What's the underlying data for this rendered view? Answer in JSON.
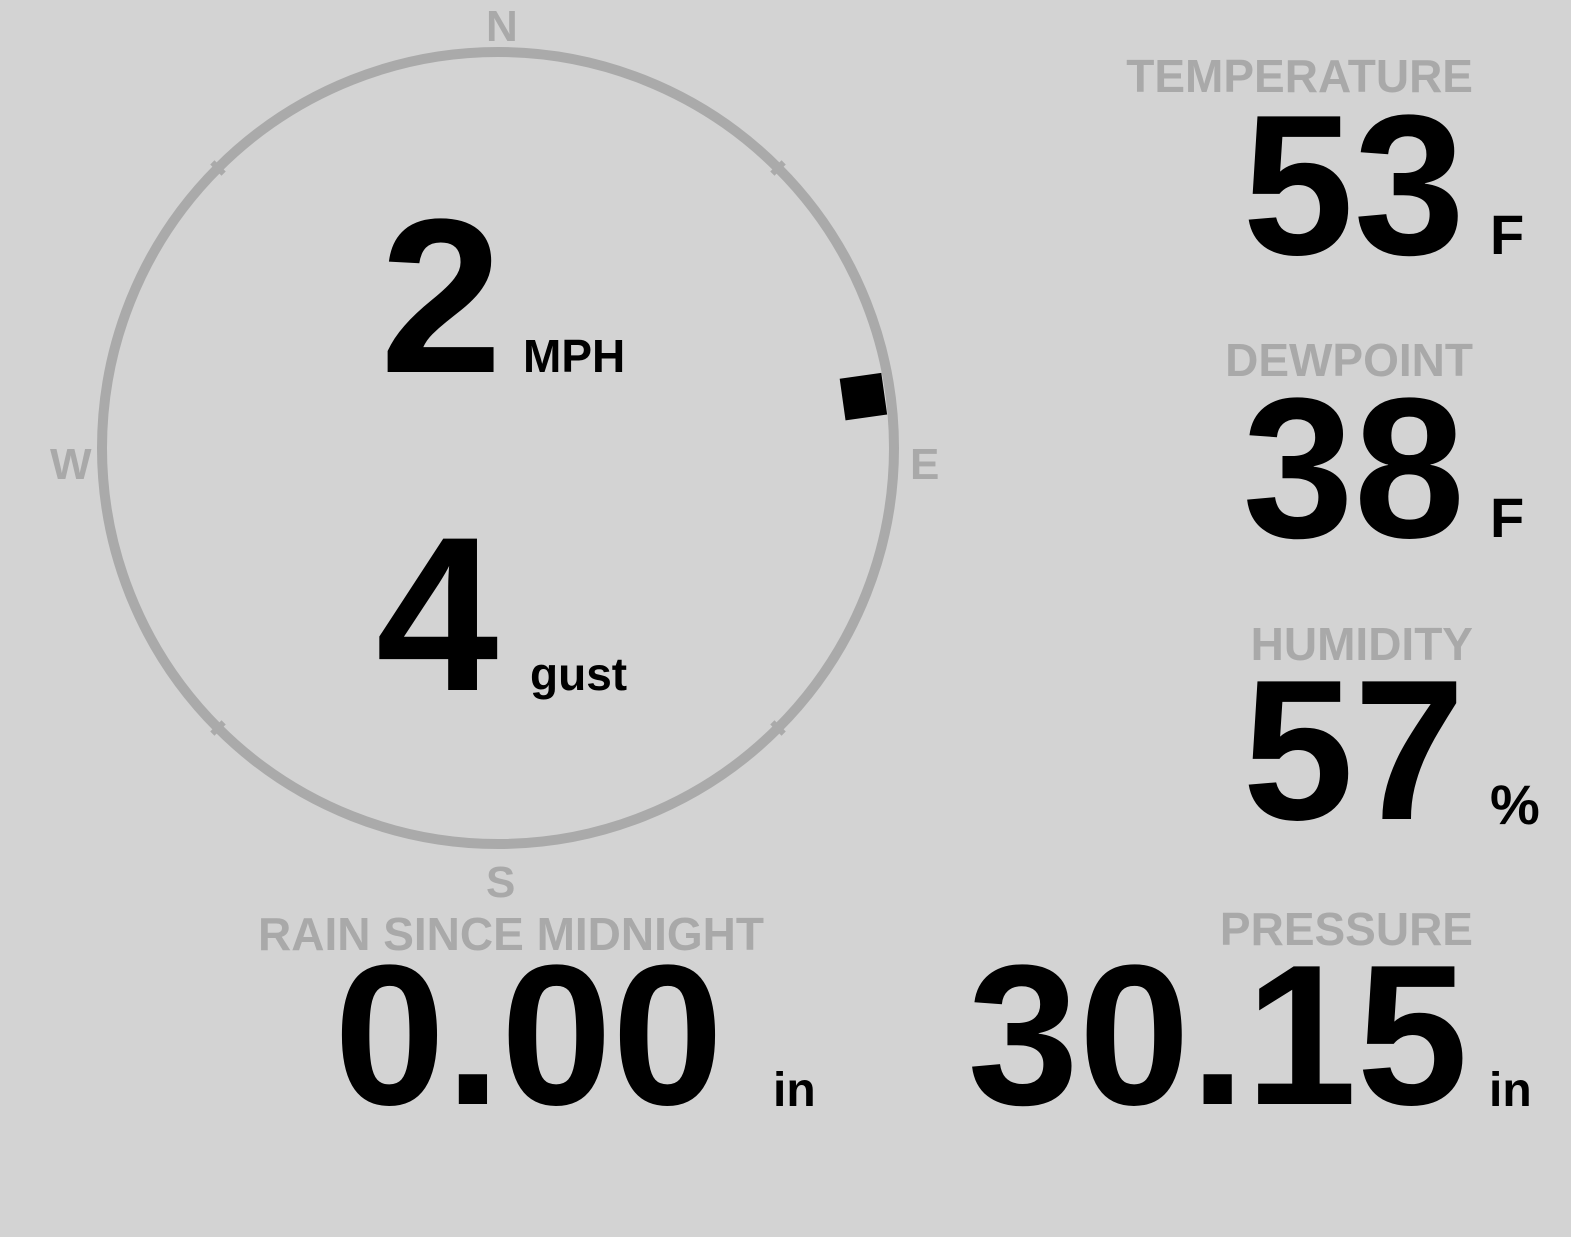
{
  "colors": {
    "background": "#d3d3d3",
    "label": "#a9a9a9",
    "value": "#000000",
    "compass": "#aaaaaa"
  },
  "compass": {
    "north": "N",
    "east": "E",
    "south": "S",
    "west": "W"
  },
  "wind": {
    "speed": "2",
    "speed_unit": "MPH",
    "gust": "4",
    "gust_label": "gust",
    "direction_deg": 82
  },
  "temperature": {
    "label": "TEMPERATURE",
    "value": "53",
    "unit": "F"
  },
  "dewpoint": {
    "label": "DEWPOINT",
    "value": "38",
    "unit": "F"
  },
  "humidity": {
    "label": "HUMIDITY",
    "value": "57",
    "unit": "%"
  },
  "rain": {
    "label": "RAIN SINCE MIDNIGHT",
    "value": "0.00",
    "unit": "in"
  },
  "pressure": {
    "label": "PRESSURE",
    "value": "30.15",
    "unit": "in"
  }
}
